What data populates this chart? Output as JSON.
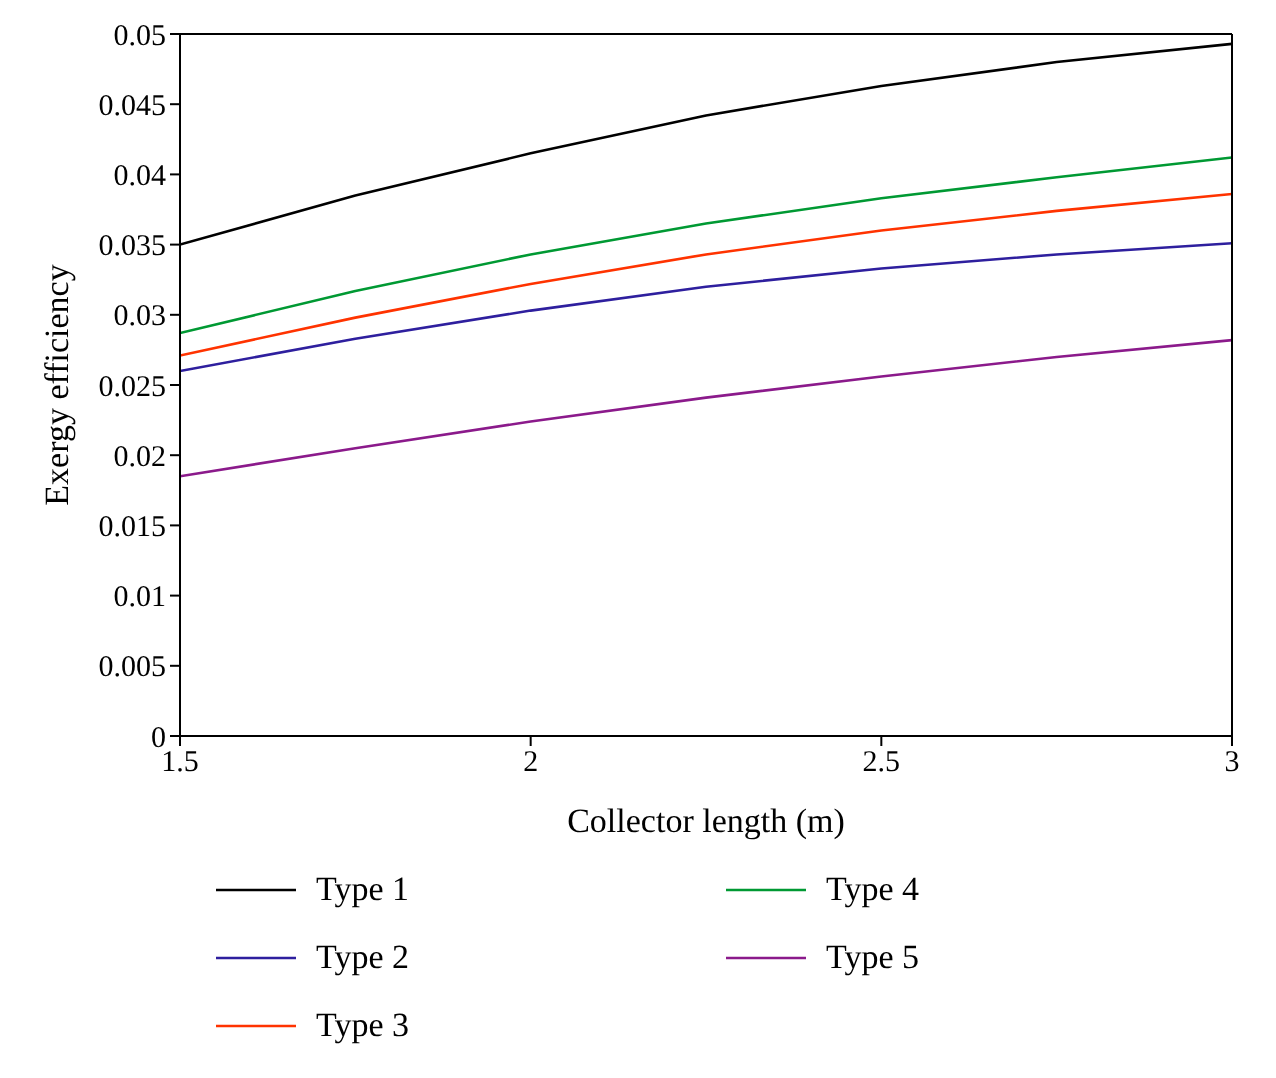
{
  "chart_data": {
    "type": "line",
    "xlabel": "Collector length (m)",
    "ylabel": "Exergy efficiency",
    "x": [
      1.5,
      1.75,
      2,
      2.25,
      2.5,
      2.75,
      3
    ],
    "xlim": [
      1.5,
      3
    ],
    "xticks": [
      1.5,
      2,
      2.5,
      3
    ],
    "ylim": [
      0,
      0.05
    ],
    "yticks": [
      0,
      0.005,
      0.01,
      0.015,
      0.02,
      0.025,
      0.03,
      0.035,
      0.04,
      0.045,
      0.05
    ],
    "grid": false,
    "legend": "bottom",
    "marker": "none",
    "line_style": "solid",
    "series": [
      {
        "name": "Type 1",
        "color": "#000000",
        "values": [
          0.035,
          0.0385,
          0.0415,
          0.0442,
          0.0463,
          0.048,
          0.0493
        ]
      },
      {
        "name": "Type 2",
        "color": "#2e1f9e",
        "values": [
          0.026,
          0.0283,
          0.0303,
          0.032,
          0.0333,
          0.0343,
          0.0351
        ]
      },
      {
        "name": "Type 3",
        "color": "#ff3300",
        "values": [
          0.0271,
          0.0298,
          0.0322,
          0.0343,
          0.036,
          0.0374,
          0.0386
        ]
      },
      {
        "name": "Type 4",
        "color": "#009933",
        "values": [
          0.0287,
          0.0317,
          0.0343,
          0.0365,
          0.0383,
          0.0398,
          0.0412
        ]
      },
      {
        "name": "Type 5",
        "color": "#8b1a8b",
        "values": [
          0.0185,
          0.0205,
          0.0224,
          0.0241,
          0.0256,
          0.027,
          0.0282
        ]
      }
    ]
  }
}
